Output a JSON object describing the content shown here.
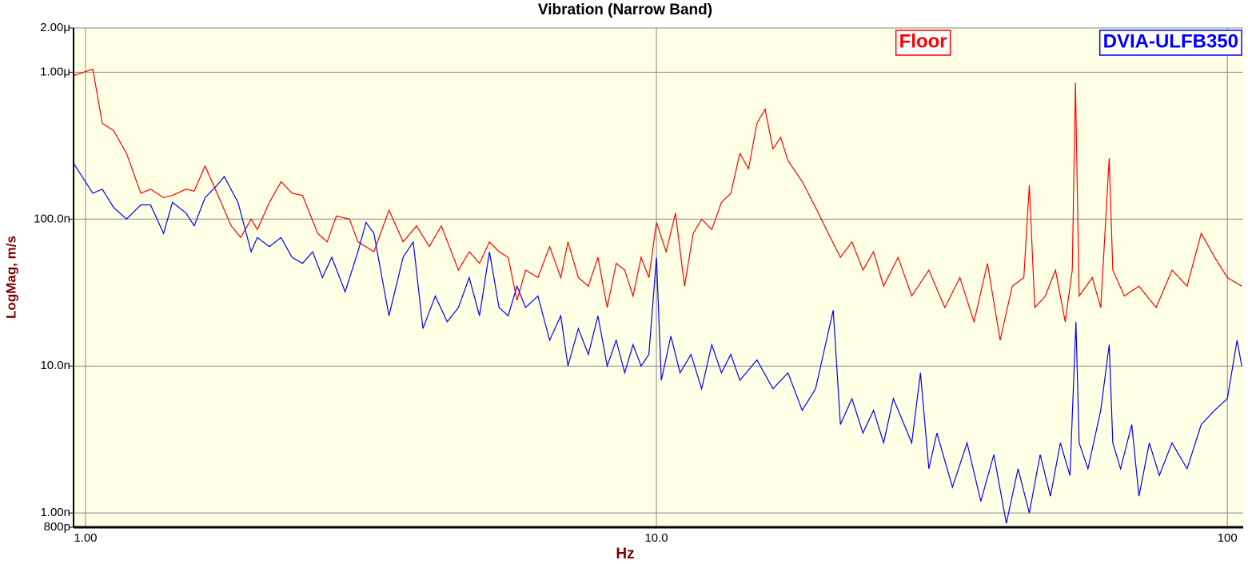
{
  "chart_data": {
    "type": "line",
    "title": "Vibration (Narrow Band)",
    "x_label": "Hz",
    "y_label": "LogMag, m/s",
    "x_log": true,
    "y_log": true,
    "grid": true,
    "legend": "top-right",
    "xlim": [
      0.953,
      106.6
    ],
    "ylim": [
      8e-10,
      2e-06
    ],
    "xticks": [
      {
        "value": 1,
        "label": "1.00"
      },
      {
        "value": 10,
        "label": "10.0"
      },
      100
    ],
    "yticks": [
      {
        "value": 2e-06,
        "label": "2.00μ"
      },
      {
        "value": 1e-06,
        "label": "1.00μ"
      },
      {
        "value": 1e-07,
        "label": "100.0n"
      },
      {
        "value": 1e-08,
        "label": "10.0n"
      },
      {
        "value": 1e-09,
        "label": "1.00n"
      },
      {
        "value": 8e-10,
        "label": "800p"
      }
    ],
    "series": [
      {
        "name": "Floor",
        "color": "#ff0000",
        "x": [
          0.953,
          1.03,
          1.07,
          1.12,
          1.18,
          1.25,
          1.3,
          1.37,
          1.42,
          1.5,
          1.55,
          1.62,
          1.7,
          1.8,
          1.87,
          1.95,
          2.0,
          2.1,
          2.2,
          2.3,
          2.4,
          2.55,
          2.65,
          2.75,
          2.9,
          3.0,
          3.2,
          3.4,
          3.6,
          3.8,
          4.0,
          4.2,
          4.5,
          4.7,
          4.9,
          5.1,
          5.3,
          5.5,
          5.7,
          5.9,
          6.2,
          6.5,
          6.8,
          7.0,
          7.3,
          7.6,
          7.9,
          8.2,
          8.5,
          8.8,
          9.1,
          9.4,
          9.7,
          10.0,
          10.4,
          10.8,
          11.2,
          11.6,
          12.0,
          12.5,
          13.0,
          13.5,
          14.0,
          14.5,
          15.0,
          15.5,
          16.0,
          16.5,
          17.0,
          18.0,
          19.0,
          20.0,
          21.0,
          22.0,
          23.0,
          24.0,
          25.0,
          26.5,
          28.0,
          30.0,
          32.0,
          34.0,
          36.0,
          38.0,
          40.0,
          42.0,
          44.0,
          45.0,
          46.0,
          48.0,
          50.0,
          52.0,
          53.5,
          54.2,
          55.0,
          58.0,
          60.0,
          62.1,
          63.0,
          66.0,
          70.0,
          75.0,
          80.0,
          85.0,
          90.0,
          95.0,
          100.0,
          106.0
        ],
        "values": [
          9.5e-07,
          1.05e-06,
          4.5e-07,
          4e-07,
          2.8e-07,
          1.5e-07,
          1.6e-07,
          1.4e-07,
          1.45e-07,
          1.6e-07,
          1.55e-07,
          2.3e-07,
          1.5e-07,
          9e-08,
          7.5e-08,
          1e-07,
          8.5e-08,
          1.3e-07,
          1.8e-07,
          1.5e-07,
          1.45e-07,
          8e-08,
          7e-08,
          1.05e-07,
          1e-07,
          7e-08,
          6e-08,
          1.15e-07,
          7e-08,
          9e-08,
          6.5e-08,
          9e-08,
          4.5e-08,
          6e-08,
          5e-08,
          7e-08,
          6e-08,
          5.5e-08,
          2.8e-08,
          4.5e-08,
          4e-08,
          6.5e-08,
          4e-08,
          7e-08,
          4e-08,
          3.5e-08,
          5.5e-08,
          2.5e-08,
          5e-08,
          4.5e-08,
          3e-08,
          5.5e-08,
          4e-08,
          9.5e-08,
          6e-08,
          1.1e-07,
          3.5e-08,
          8e-08,
          1e-07,
          8.5e-08,
          1.3e-07,
          1.5e-07,
          2.8e-07,
          2.2e-07,
          4.5e-07,
          5.6e-07,
          3e-07,
          3.6e-07,
          2.5e-07,
          1.8e-07,
          1.2e-07,
          8e-08,
          5.5e-08,
          7e-08,
          4.5e-08,
          6e-08,
          3.5e-08,
          5.5e-08,
          3e-08,
          4.5e-08,
          2.5e-08,
          4e-08,
          2e-08,
          5e-08,
          1.5e-08,
          3.5e-08,
          4e-08,
          1.7e-07,
          2.5e-08,
          3e-08,
          4.5e-08,
          2e-08,
          4.5e-08,
          8.5e-07,
          3e-08,
          4e-08,
          2.5e-08,
          2.6e-07,
          4.5e-08,
          3e-08,
          3.5e-08,
          2.5e-08,
          4.5e-08,
          3.5e-08,
          8e-08,
          5.5e-08,
          4e-08,
          3.5e-08
        ]
      },
      {
        "name": "DVIA-ULFB350",
        "color": "#0000ff",
        "x": [
          0.953,
          1.03,
          1.07,
          1.12,
          1.18,
          1.25,
          1.3,
          1.37,
          1.42,
          1.5,
          1.55,
          1.62,
          1.7,
          1.75,
          1.85,
          1.95,
          2.0,
          2.1,
          2.2,
          2.3,
          2.4,
          2.5,
          2.6,
          2.7,
          2.85,
          3.0,
          3.1,
          3.2,
          3.4,
          3.6,
          3.75,
          3.9,
          4.1,
          4.3,
          4.5,
          4.7,
          4.9,
          5.1,
          5.3,
          5.5,
          5.7,
          5.9,
          6.2,
          6.5,
          6.8,
          7.0,
          7.3,
          7.6,
          7.9,
          8.2,
          8.5,
          8.8,
          9.1,
          9.4,
          9.7,
          10.0,
          10.2,
          10.6,
          11.0,
          11.5,
          12.0,
          12.5,
          13.0,
          13.5,
          14.0,
          15.0,
          16.0,
          17.0,
          18.0,
          19.0,
          20.4,
          21.0,
          22.0,
          23.0,
          24.0,
          25.0,
          26.0,
          28.0,
          29.0,
          30.0,
          31.0,
          33.0,
          35.0,
          37.0,
          39.0,
          41.0,
          43.0,
          45.0,
          47.0,
          49.0,
          51.0,
          53.0,
          54.3,
          55.0,
          57.0,
          60.0,
          62.1,
          63.0,
          65.0,
          68.0,
          70.0,
          73.0,
          76.0,
          80.0,
          85.0,
          90.0,
          95.0,
          100.0,
          104.0,
          106.0
        ],
        "values": [
          2.4e-07,
          1.5e-07,
          1.6e-07,
          1.2e-07,
          1e-07,
          1.25e-07,
          1.25e-07,
          8e-08,
          1.3e-07,
          1.1e-07,
          9e-08,
          1.4e-07,
          1.7e-07,
          1.95e-07,
          1.3e-07,
          6e-08,
          7.5e-08,
          6.5e-08,
          7.5e-08,
          5.5e-08,
          5e-08,
          6e-08,
          4e-08,
          5.5e-08,
          3.2e-08,
          6e-08,
          9.5e-08,
          8e-08,
          2.2e-08,
          5.5e-08,
          7e-08,
          1.8e-08,
          3e-08,
          2e-08,
          2.5e-08,
          4e-08,
          2.2e-08,
          6e-08,
          2.5e-08,
          2.2e-08,
          3.5e-08,
          2.5e-08,
          3e-08,
          1.5e-08,
          2.2e-08,
          1e-08,
          1.8e-08,
          1.2e-08,
          2.2e-08,
          1e-08,
          1.5e-08,
          9e-09,
          1.4e-08,
          1e-08,
          1.2e-08,
          5.5e-08,
          8e-09,
          1.6e-08,
          9e-09,
          1.2e-08,
          7e-09,
          1.4e-08,
          9e-09,
          1.2e-08,
          8e-09,
          1.1e-08,
          7e-09,
          9e-09,
          5e-09,
          7e-09,
          2.4e-08,
          4e-09,
          6e-09,
          3.5e-09,
          5e-09,
          3e-09,
          6e-09,
          3e-09,
          9e-09,
          2e-09,
          3.5e-09,
          1.5e-09,
          3e-09,
          1.2e-09,
          2.5e-09,
          8.5e-10,
          2e-09,
          1e-09,
          2.5e-09,
          1.3e-09,
          3e-09,
          1.8e-09,
          2e-08,
          3e-09,
          2e-09,
          5e-09,
          1.4e-08,
          3e-09,
          2e-09,
          4e-09,
          1.3e-09,
          3e-09,
          1.8e-09,
          3e-09,
          2e-09,
          4e-09,
          5e-09,
          6e-09,
          1.5e-08,
          1e-08
        ]
      }
    ]
  }
}
